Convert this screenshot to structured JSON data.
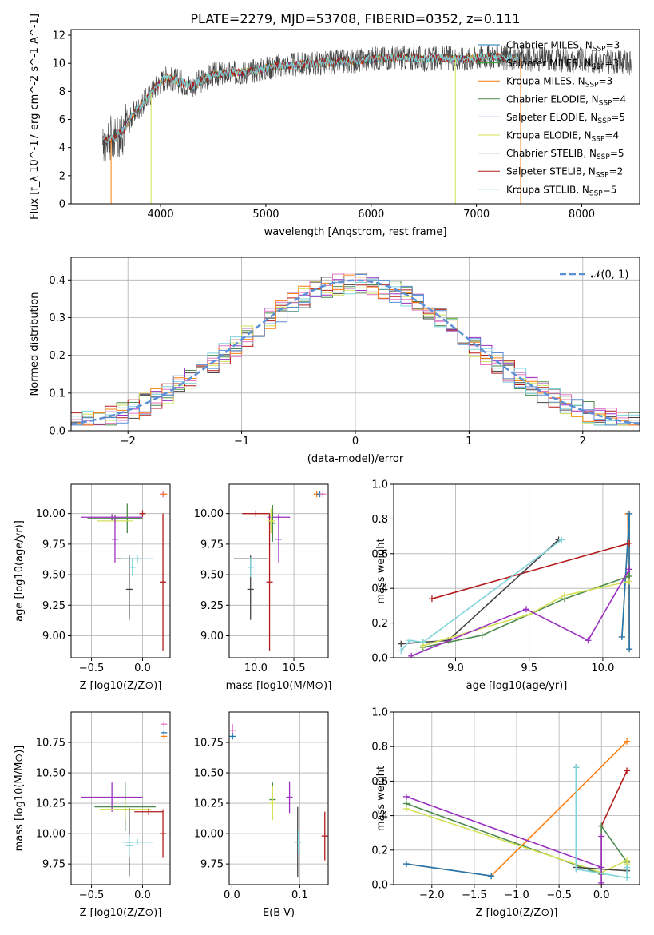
{
  "figure": {
    "title": "PLATE=2279, MJD=53708, FIBERID=0352, z=0.111"
  },
  "colors": {
    "chabrier_miles": "#1f77b4",
    "salpeter_miles": "#2ca02c",
    "kroupa_miles": "#ff7f0e",
    "chabrier_elodie": "#4c8a4c",
    "salpeter_elodie": "#9b30c0",
    "kroupa_elodie": "#d4e157",
    "chabrier_stelib": "#444444",
    "salpeter_stelib": "#b31b1b",
    "kroupa_stelib": "#7fd4dc",
    "pink": "#e377c2",
    "normal": "#5b8fd6",
    "grid": "#b0b0b0"
  },
  "chart_data": [
    {
      "id": "spectrum",
      "type": "line",
      "title": "",
      "xlabel": "wavelength [Angstrom, rest frame]",
      "ylabel": "Flux [f_λ 10^-17 erg cm^-2 s^-1 A^-1]",
      "xlim": [
        3150,
        8550
      ],
      "ylim": [
        0,
        12.4
      ],
      "xticks": [
        4000,
        5000,
        6000,
        7000,
        8000
      ],
      "yticks": [
        0,
        2,
        4,
        6,
        8,
        10,
        12
      ],
      "grid": false,
      "legend_position": "top-right",
      "continuum": {
        "x": [
          3450,
          3550,
          3650,
          3750,
          3850,
          3950,
          4050,
          4150,
          4300,
          4500,
          4700,
          4900,
          5100,
          5300,
          5500,
          5700,
          5900,
          6100,
          6300,
          6500,
          6700,
          6900,
          7100,
          7300,
          7500,
          7700,
          7900,
          8100,
          8300,
          8480
        ],
        "y": [
          4.5,
          4.6,
          5.3,
          6.5,
          7.3,
          8.3,
          9.0,
          8.8,
          8.4,
          9.2,
          9.3,
          9.5,
          9.8,
          9.9,
          10.0,
          10.1,
          10.2,
          10.4,
          10.4,
          10.3,
          10.4,
          10.3,
          10.5,
          10.4,
          10.3,
          10.3,
          10.2,
          10.2,
          10.1,
          10.0
        ]
      },
      "series": [
        {
          "name": "Chabrier MILES, N_SSP=3",
          "legend_main": "Chabrier MILES, N",
          "legend_sub": "SSP",
          "legend_tail": "=3",
          "color": "#1f77b4",
          "range": [
            3450,
            7400
          ],
          "noise": 0.25
        },
        {
          "name": "Salpeter MILES, N_SSP=3",
          "legend_main": "Salpeter MILES, N",
          "legend_sub": "SSP",
          "legend_tail": "=3",
          "color": "#2ca02c",
          "range": [
            3450,
            7400
          ],
          "noise": 0.25
        },
        {
          "name": "Kroupa MILES, N_SSP=3",
          "legend_main": "Kroupa MILES, N",
          "legend_sub": "SSP",
          "legend_tail": "=3",
          "color": "#ff7f0e",
          "range": [
            3450,
            7400
          ],
          "noise": 0.3
        },
        {
          "name": "Chabrier ELODIE, N_SSP=4",
          "legend_main": "Chabrier ELODIE, N",
          "legend_sub": "SSP",
          "legend_tail": "=4",
          "color": "#4c8a4c",
          "range": [
            3450,
            7400
          ],
          "noise": 0.25
        },
        {
          "name": "Salpeter ELODIE, N_SSP=5",
          "legend_main": "Salpeter ELODIE, N",
          "legend_sub": "SSP",
          "legend_tail": "=5",
          "color": "#9b30c0",
          "range": [
            3450,
            7400
          ],
          "noise": 0.25
        },
        {
          "name": "Kroupa ELODIE, N_SSP=4",
          "legend_main": "Kroupa ELODIE, N",
          "legend_sub": "SSP",
          "legend_tail": "=4",
          "color": "#d4e157",
          "range": [
            3450,
            7400
          ],
          "noise": 0.25
        },
        {
          "name": "Chabrier STELIB, N_SSP=5",
          "legend_main": "Chabrier STELIB, N",
          "legend_sub": "SSP",
          "legend_tail": "=5",
          "color": "#444444",
          "range": [
            3450,
            8480
          ],
          "noise": 0.9
        },
        {
          "name": "Salpeter STELIB, N_SSP=2",
          "legend_main": "Salpeter STELIB, N",
          "legend_sub": "SSP",
          "legend_tail": "=2",
          "color": "#b31b1b",
          "range": [
            3450,
            7400
          ],
          "noise": 0.3
        },
        {
          "name": "Kroupa STELIB, N_SSP=5",
          "legend_main": "Kroupa STELIB, N",
          "legend_sub": "SSP",
          "legend_tail": "=5",
          "color": "#7fd4dc",
          "range": [
            3450,
            7400
          ],
          "noise": 0.3
        }
      ],
      "drops": [
        {
          "x": 3530,
          "color": "#ff7f0e"
        },
        {
          "x": 3910,
          "color": "#d4e157"
        },
        {
          "x": 6800,
          "color": "#d4e157"
        },
        {
          "x": 7420,
          "color": "#ff7f0e"
        }
      ]
    },
    {
      "id": "residuals",
      "type": "line",
      "title": "",
      "xlabel": "(data-model)/error",
      "ylabel": "Normed distribution",
      "xlim": [
        -2.5,
        2.5
      ],
      "ylim": [
        0,
        0.46
      ],
      "xticks": [
        -2,
        -1,
        0,
        1,
        2
      ],
      "yticks": [
        0.0,
        0.1,
        0.2,
        0.3,
        0.4
      ],
      "grid": true,
      "legend_position": "top-right",
      "legend": "𝒩(0, 1)",
      "bin_width": 0.1,
      "bin_start": -2.5,
      "normal_curve": {
        "mean": 0,
        "sigma": 1,
        "color": "#5b8fd6"
      },
      "histograms": [
        {
          "color": "#444444",
          "seed": 1
        },
        {
          "color": "#4c8a4c",
          "seed": 2
        },
        {
          "color": "#9b30c0",
          "seed": 3
        },
        {
          "color": "#d4e157",
          "seed": 4
        },
        {
          "color": "#b31b1b",
          "seed": 5
        },
        {
          "color": "#7fd4dc",
          "seed": 6
        },
        {
          "color": "#e377c2",
          "seed": 7
        },
        {
          "color": "#ff7f0e",
          "seed": 8
        },
        {
          "color": "#5b8fd6",
          "seed": 9
        }
      ]
    },
    {
      "id": "age_vs_z",
      "type": "scatter",
      "xlabel": "Z [log10(Z/Z⊙)]",
      "ylabel": "age  [log10(age/yr)]",
      "xlim": [
        -0.7,
        0.27
      ],
      "ylim": [
        8.82,
        10.24
      ],
      "xticks": [
        -0.5,
        0.0
      ],
      "yticks": [
        9.0,
        9.25,
        9.5,
        9.75,
        10.0
      ],
      "grid": true,
      "crosses": [
        {
          "x": 0.2,
          "y": 10.16,
          "xerr": 0.0,
          "yerr": 0.0,
          "color": "#e377c2"
        },
        {
          "x": 0.21,
          "y": 10.16,
          "xerr": 0.0,
          "yerr": 0.0,
          "color": "#ff7f0e"
        },
        {
          "x": -0.3,
          "y": 9.97,
          "xerr": 0.3,
          "yerr": 0.0,
          "color": "#9b30c0"
        },
        {
          "x": -0.27,
          "y": 9.96,
          "xerr": 0.27,
          "yerr": 0.0,
          "color": "#4c8a4c"
        },
        {
          "x": -0.15,
          "y": 9.96,
          "xerr": 0.12,
          "yerr": 0.12,
          "color": "#4c8a4c"
        },
        {
          "x": -0.27,
          "y": 9.94,
          "xerr": 0.18,
          "yerr": 0.0,
          "color": "#d4e157"
        },
        {
          "x": -0.27,
          "y": 9.79,
          "xerr": 0.0,
          "yerr": 0.19,
          "color": "#9b30c0"
        },
        {
          "x": 0.0,
          "y": 10.0,
          "xerr": 0.0,
          "yerr": 0.0,
          "color": "#b31b1b"
        },
        {
          "x": 0.2,
          "y": 9.44,
          "xerr": 0.0,
          "yerr": 0.56,
          "color": "#b31b1b"
        },
        {
          "x": -0.13,
          "y": 9.63,
          "xerr": 0.13,
          "yerr": 0.0,
          "color": "#444444"
        },
        {
          "x": -0.13,
          "y": 9.38,
          "xerr": 0.0,
          "yerr": 0.25,
          "color": "#444444"
        },
        {
          "x": -0.05,
          "y": 9.63,
          "xerr": 0.16,
          "yerr": 0.0,
          "color": "#7fd4dc"
        },
        {
          "x": -0.1,
          "y": 9.56,
          "xerr": 0.0,
          "yerr": 0.07,
          "color": "#7fd4dc"
        }
      ]
    },
    {
      "id": "age_vs_mass",
      "type": "scatter",
      "xlabel": "mass [log10(M/M⊙)]",
      "ylabel": "",
      "xlim": [
        9.65,
        10.95
      ],
      "ylim": [
        8.82,
        10.24
      ],
      "xticks": [
        10.0,
        10.5
      ],
      "yticks": [
        9.0,
        9.25,
        9.5,
        9.75,
        10.0
      ],
      "grid": true,
      "crosses": [
        {
          "x": 10.8,
          "y": 10.16,
          "xerr": 0.02,
          "yerr": 0.0,
          "color": "#ff7f0e"
        },
        {
          "x": 10.84,
          "y": 10.16,
          "xerr": 0.0,
          "yerr": 0.0,
          "color": "#1f77b4"
        },
        {
          "x": 10.88,
          "y": 10.16,
          "xerr": 0.0,
          "yerr": 0.0,
          "color": "#e377c2"
        },
        {
          "x": 10.0,
          "y": 10.0,
          "xerr": 0.18,
          "yerr": 0.0,
          "color": "#b31b1b"
        },
        {
          "x": 10.18,
          "y": 9.44,
          "xerr": 0.0,
          "yerr": 0.56,
          "color": "#b31b1b"
        },
        {
          "x": 10.3,
          "y": 9.97,
          "xerr": 0.15,
          "yerr": 0.0,
          "color": "#9b30c0"
        },
        {
          "x": 10.3,
          "y": 9.79,
          "xerr": 0.0,
          "yerr": 0.19,
          "color": "#9b30c0"
        },
        {
          "x": 10.22,
          "y": 9.92,
          "xerr": 0.0,
          "yerr": 0.15,
          "color": "#4c8a4c"
        },
        {
          "x": 10.2,
          "y": 9.94,
          "xerr": 0.05,
          "yerr": 0.1,
          "color": "#d4e157"
        },
        {
          "x": 9.93,
          "y": 9.63,
          "xerr": 0.22,
          "yerr": 0.0,
          "color": "#444444"
        },
        {
          "x": 9.93,
          "y": 9.38,
          "xerr": 0.0,
          "yerr": 0.25,
          "color": "#444444"
        },
        {
          "x": 9.93,
          "y": 9.56,
          "xerr": 0.0,
          "yerr": 0.08,
          "color": "#7fd4dc"
        }
      ]
    },
    {
      "id": "weight_vs_age",
      "type": "line",
      "xlabel": "age  [log10(age/yr)]",
      "ylabel": "mass weight",
      "xlim": [
        8.58,
        10.25
      ],
      "ylim": [
        0,
        1.0
      ],
      "xticks": [
        9.0,
        9.5,
        10.0
      ],
      "yticks": [
        0.0,
        0.2,
        0.4,
        0.6,
        0.8,
        1.0
      ],
      "grid": true,
      "series": [
        {
          "color": "#ff7f0e",
          "x": [
            10.13,
            10.18,
            10.18,
            10.17,
            10.18
          ],
          "y": [
            0.12,
            0.83,
            0.05,
            0.83,
            0.83
          ]
        },
        {
          "color": "#1f77b4",
          "x": [
            10.13,
            10.18,
            10.18
          ],
          "y": [
            0.12,
            0.83,
            0.05
          ]
        },
        {
          "color": "#b31b1b",
          "x": [
            8.84,
            10.18
          ],
          "y": [
            0.34,
            0.66
          ]
        },
        {
          "color": "#444444",
          "x": [
            8.63,
            8.78,
            8.95,
            9.7
          ],
          "y": [
            0.08,
            0.09,
            0.1,
            0.68
          ]
        },
        {
          "color": "#7fd4dc",
          "x": [
            8.63,
            8.69,
            8.78,
            9.72
          ],
          "y": [
            0.04,
            0.1,
            0.09,
            0.68
          ]
        },
        {
          "color": "#4c8a4c",
          "x": [
            8.78,
            9.18,
            9.74,
            10.18
          ],
          "y": [
            0.06,
            0.13,
            0.34,
            0.47
          ]
        },
        {
          "color": "#d4e157",
          "x": [
            8.78,
            9.5,
            9.74,
            10.18
          ],
          "y": [
            0.07,
            0.25,
            0.36,
            0.44
          ]
        },
        {
          "color": "#9b30c0",
          "x": [
            8.7,
            9.48,
            9.9,
            10.18
          ],
          "y": [
            0.01,
            0.28,
            0.1,
            0.51
          ]
        }
      ]
    },
    {
      "id": "mass_vs_z",
      "type": "scatter",
      "xlabel": "Z [log10(Z/Z⊙)]",
      "ylabel": "mass [log10(M/M⊙)]",
      "xlim": [
        -0.7,
        0.27
      ],
      "ylim": [
        9.58,
        11.0
      ],
      "xticks": [
        -0.5,
        0.0
      ],
      "yticks": [
        9.75,
        10.0,
        10.25,
        10.5,
        10.75
      ],
      "grid": true,
      "crosses": [
        {
          "x": 0.21,
          "y": 10.9,
          "xerr": 0.0,
          "yerr": 0.0,
          "color": "#e377c2"
        },
        {
          "x": 0.21,
          "y": 10.83,
          "xerr": 0.0,
          "yerr": 0.0,
          "color": "#1f77b4"
        },
        {
          "x": 0.21,
          "y": 10.8,
          "xerr": 0.0,
          "yerr": 0.0,
          "color": "#ff7f0e"
        },
        {
          "x": -0.3,
          "y": 10.3,
          "xerr": 0.3,
          "yerr": 0.12,
          "color": "#9b30c0"
        },
        {
          "x": -0.17,
          "y": 10.22,
          "xerr": 0.3,
          "yerr": 0.2,
          "color": "#4c8a4c"
        },
        {
          "x": -0.17,
          "y": 10.2,
          "xerr": 0.25,
          "yerr": 0.08,
          "color": "#d4e157"
        },
        {
          "x": 0.2,
          "y": 10.0,
          "xerr": 0.0,
          "yerr": 0.2,
          "color": "#b31b1b"
        },
        {
          "x": 0.06,
          "y": 10.18,
          "xerr": 0.14,
          "yerr": 0.0,
          "color": "#b31b1b"
        },
        {
          "x": -0.13,
          "y": 9.93,
          "xerr": 0.0,
          "yerr": 0.28,
          "color": "#444444"
        },
        {
          "x": -0.05,
          "y": 9.93,
          "xerr": 0.15,
          "yerr": 0.0,
          "color": "#7fd4dc"
        },
        {
          "x": -0.13,
          "y": 9.9,
          "xerr": 0.0,
          "yerr": 0.1,
          "color": "#7fd4dc"
        }
      ]
    },
    {
      "id": "mass_vs_ebv",
      "type": "scatter",
      "xlabel": "E(B-V)",
      "ylabel": "",
      "xlim": [
        -0.004,
        0.142
      ],
      "ylim": [
        9.58,
        11.0
      ],
      "xticks": [
        0.0,
        0.1
      ],
      "yticks": [
        9.75,
        10.0,
        10.25,
        10.5,
        10.75
      ],
      "grid": true,
      "crosses": [
        {
          "x": 0.001,
          "y": 10.85,
          "xerr": 0.0,
          "yerr": 0.05,
          "color": "#e377c2"
        },
        {
          "x": 0.001,
          "y": 10.8,
          "xerr": 0.0,
          "yerr": 0.0,
          "color": "#1f77b4"
        },
        {
          "x": 0.06,
          "y": 10.28,
          "xerr": 0.0,
          "yerr": 0.14,
          "color": "#4c8a4c"
        },
        {
          "x": 0.06,
          "y": 10.25,
          "xerr": 0.0,
          "yerr": 0.14,
          "color": "#d4e157"
        },
        {
          "x": 0.085,
          "y": 10.3,
          "xerr": 0.0,
          "yerr": 0.13,
          "color": "#9b30c0"
        },
        {
          "x": 0.097,
          "y": 9.93,
          "xerr": 0.0,
          "yerr": 0.29,
          "color": "#444444"
        },
        {
          "x": 0.098,
          "y": 9.93,
          "xerr": 0.0,
          "yerr": 0.1,
          "color": "#7fd4dc"
        },
        {
          "x": 0.137,
          "y": 9.98,
          "xerr": 0.0,
          "yerr": 0.2,
          "color": "#b31b1b"
        }
      ]
    },
    {
      "id": "weight_vs_z",
      "type": "line",
      "xlabel": "Z [log10(Z/Z⊙)]",
      "ylabel": "mass weight",
      "xlim": [
        -2.45,
        0.45
      ],
      "ylim": [
        0,
        1.0
      ],
      "xticks": [
        -2.0,
        -1.5,
        -1.0,
        -0.5,
        0.0
      ],
      "yticks": [
        0.0,
        0.2,
        0.4,
        0.6,
        0.8,
        1.0
      ],
      "grid": true,
      "series": [
        {
          "color": "#ff7f0e",
          "x": [
            -2.3,
            -1.3,
            0.3
          ],
          "y": [
            0.12,
            0.05,
            0.83
          ]
        },
        {
          "color": "#1f77b4",
          "x": [
            -2.3,
            -1.3
          ],
          "y": [
            0.12,
            0.05
          ]
        },
        {
          "color": "#b31b1b",
          "x": [
            0.0,
            0.0,
            0.3
          ],
          "y": [
            0.0,
            0.34,
            0.66
          ]
        },
        {
          "color": "#4c8a4c",
          "x": [
            -2.3,
            0.0,
            0.0,
            0.3
          ],
          "y": [
            0.47,
            0.06,
            0.34,
            0.13
          ]
        },
        {
          "color": "#d4e157",
          "x": [
            -2.3,
            0.0,
            0.3,
            0.3
          ],
          "y": [
            0.44,
            0.07,
            0.14,
            0.12
          ]
        },
        {
          "color": "#9b30c0",
          "x": [
            -2.3,
            0.0,
            0.0,
            0.0
          ],
          "y": [
            0.51,
            0.1,
            0.01,
            0.28
          ]
        },
        {
          "color": "#444444",
          "x": [
            -0.3,
            -0.3,
            0.3,
            0.3
          ],
          "y": [
            0.68,
            0.1,
            0.08,
            0.09
          ]
        },
        {
          "color": "#7fd4dc",
          "x": [
            -0.3,
            -0.3,
            0.3,
            0.3
          ],
          "y": [
            0.68,
            0.09,
            0.04,
            0.1
          ]
        }
      ]
    }
  ]
}
